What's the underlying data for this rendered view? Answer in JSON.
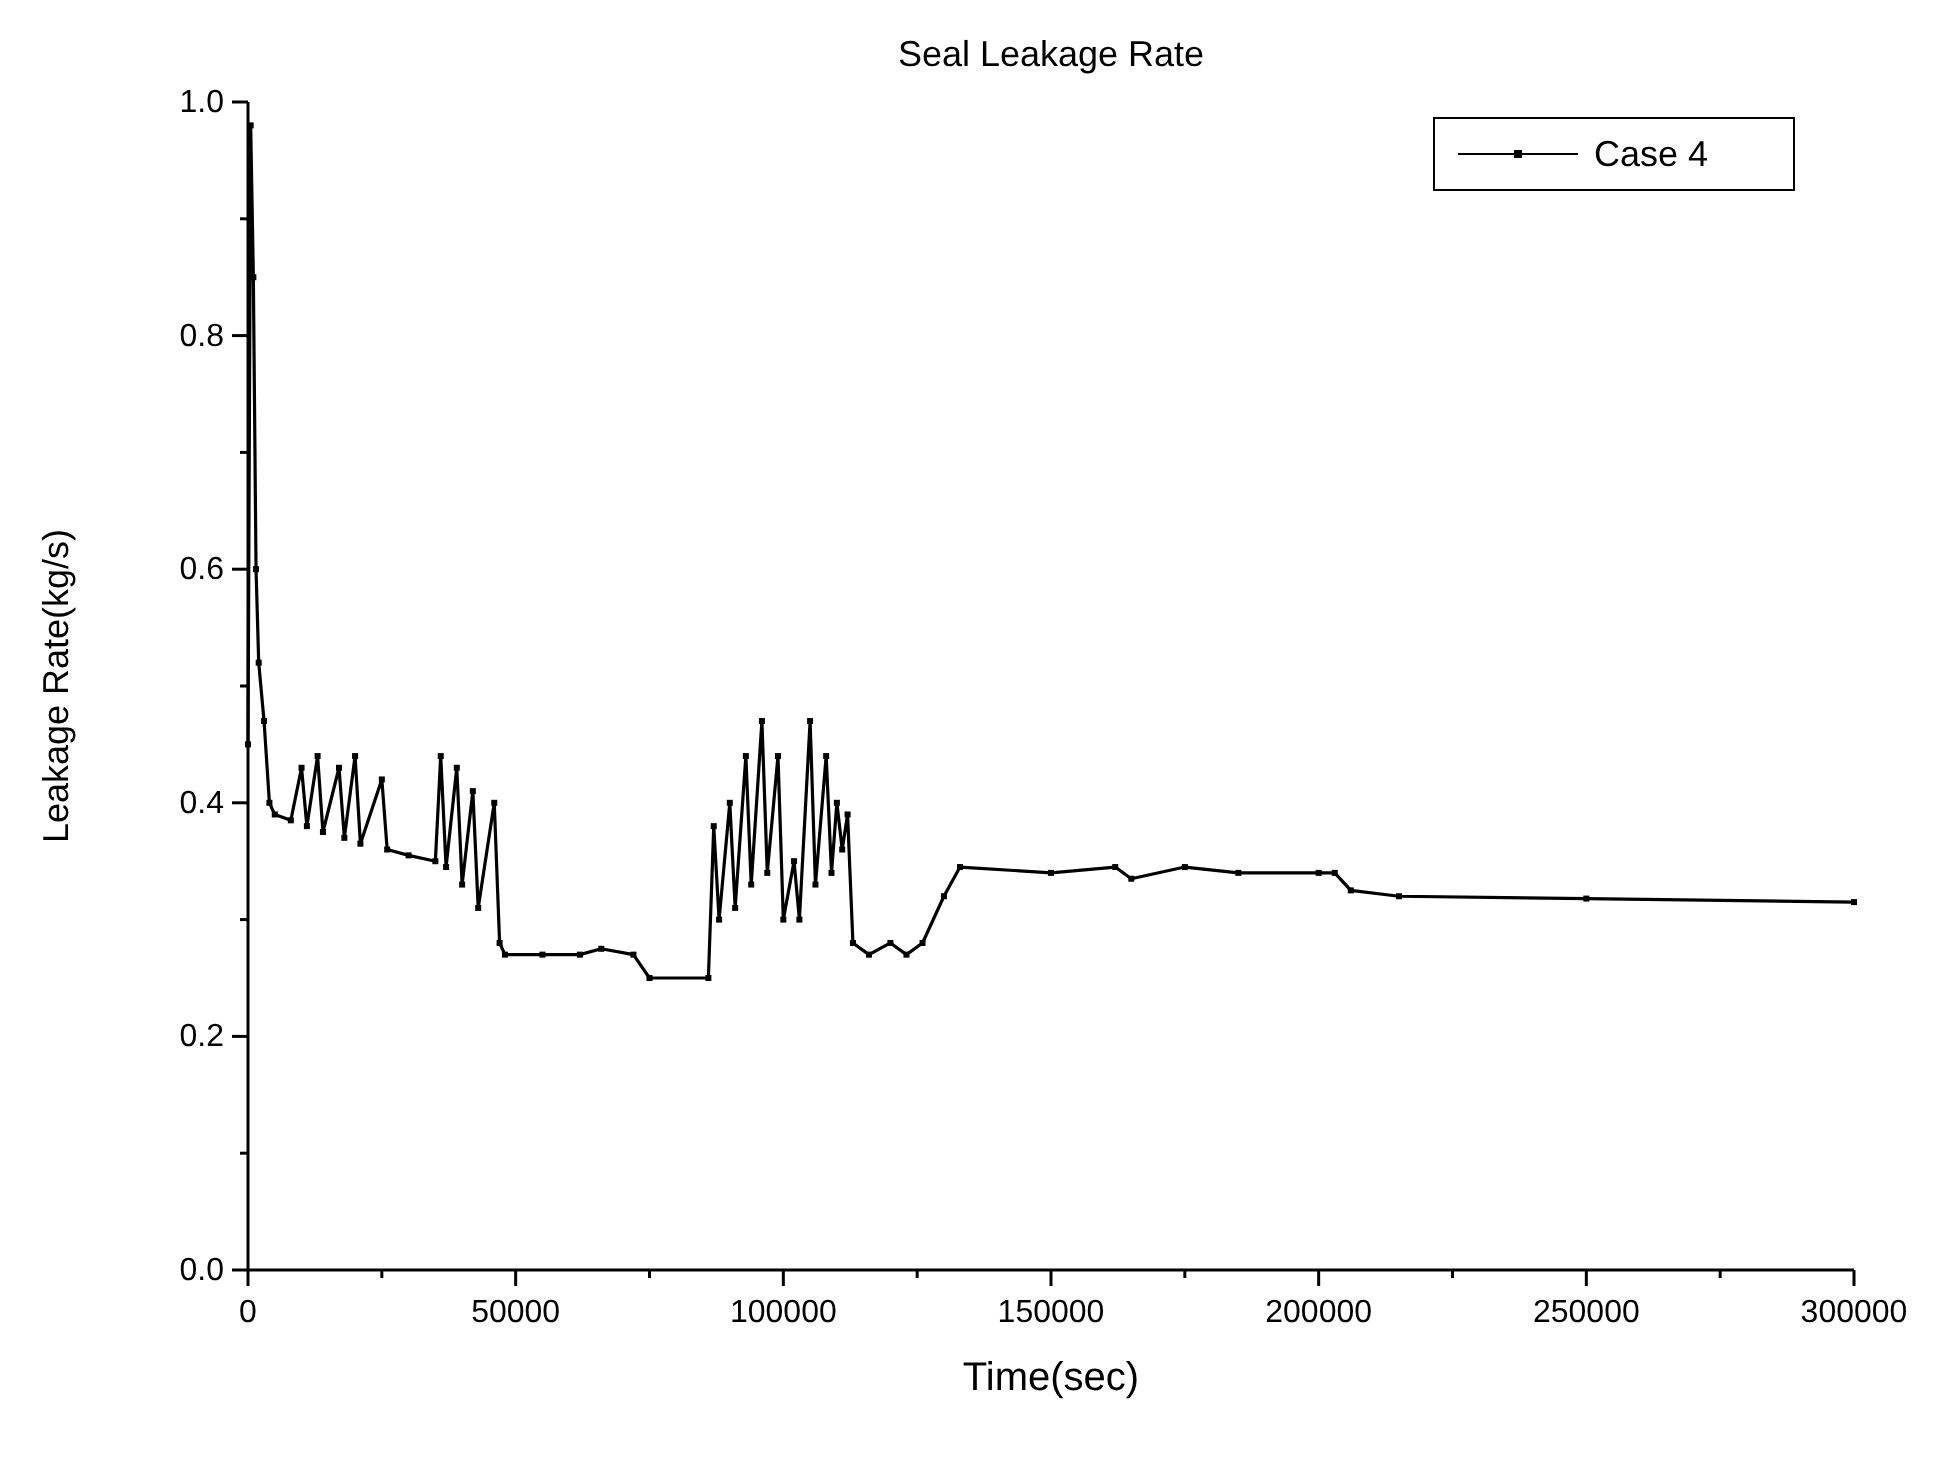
{
  "chart_data": {
    "type": "line",
    "title": "Seal Leakage Rate",
    "xlabel": "Time(sec)",
    "ylabel": "Leakage Rate(kg/s)",
    "xlim": [
      0,
      300000
    ],
    "ylim": [
      0,
      1
    ],
    "xticks": [
      0,
      {
        "value": 25000,
        "label": null
      },
      50000,
      {
        "value": 75000,
        "label": null
      },
      100000,
      {
        "value": 125000,
        "label": null
      },
      150000,
      {
        "value": 175000,
        "label": null
      },
      200000,
      {
        "value": 225000,
        "label": null
      },
      250000,
      {
        "value": 275000,
        "label": null
      },
      300000
    ],
    "yticks": [
      {
        "value": 0,
        "label": "0.0"
      },
      {
        "value": 0.1,
        "label": null
      },
      {
        "value": 0.2,
        "label": "0.2"
      },
      {
        "value": 0.3,
        "label": null
      },
      {
        "value": 0.4,
        "label": "0.4"
      },
      {
        "value": 0.5,
        "label": null
      },
      {
        "value": 0.6,
        "label": "0.6"
      },
      {
        "value": 0.7,
        "label": null
      },
      {
        "value": 0.8,
        "label": "0.8"
      },
      {
        "value": 0.9,
        "label": null
      },
      {
        "value": 1,
        "label": "1.0"
      }
    ],
    "grid": false,
    "legend": "top right",
    "marker": "square",
    "line_style": "solid",
    "x": [
      0,
      500,
      1000,
      1500,
      2000,
      3000,
      4000,
      5000,
      8000,
      10000,
      11000,
      13000,
      14000,
      17000,
      18000,
      20000,
      21000,
      25000,
      26000,
      30000,
      35000,
      36000,
      37000,
      39000,
      40000,
      42000,
      43000,
      46000,
      47000,
      48000,
      55000,
      62000,
      66000,
      72000,
      75000,
      86000,
      87000,
      88000,
      90000,
      91000,
      93000,
      94000,
      96000,
      97000,
      99000,
      100000,
      102000,
      103000,
      105000,
      106000,
      108000,
      109000,
      110000,
      111000,
      112000,
      113000,
      116000,
      120000,
      123000,
      126000,
      130000,
      133000,
      150000,
      162000,
      165000,
      175000,
      185000,
      200000,
      203000,
      206000,
      215000,
      250000,
      300000
    ],
    "series": [
      {
        "name": "Case 4",
        "color": "#000000",
        "values": [
          0.45,
          0.98,
          0.85,
          0.6,
          0.52,
          0.47,
          0.4,
          0.39,
          0.385,
          0.43,
          0.38,
          0.44,
          0.375,
          0.43,
          0.37,
          0.44,
          0.365,
          0.42,
          0.36,
          0.355,
          0.35,
          0.44,
          0.345,
          0.43,
          0.33,
          0.41,
          0.31,
          0.4,
          0.28,
          0.27,
          0.27,
          0.27,
          0.275,
          0.27,
          0.25,
          0.25,
          0.38,
          0.3,
          0.4,
          0.31,
          0.44,
          0.33,
          0.47,
          0.34,
          0.44,
          0.3,
          0.35,
          0.3,
          0.47,
          0.33,
          0.44,
          0.34,
          0.4,
          0.36,
          0.39,
          0.28,
          0.27,
          0.28,
          0.27,
          0.28,
          0.32,
          0.345,
          0.34,
          0.345,
          0.335,
          0.345,
          0.34,
          0.34,
          0.34,
          0.325,
          0.32,
          0.318,
          0.315
        ]
      }
    ]
  }
}
